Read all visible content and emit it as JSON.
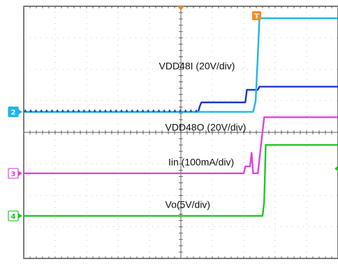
{
  "chart_data": {
    "type": "line",
    "title": "",
    "xlabel": "",
    "ylabel": "",
    "grid": true,
    "grid_divisions": {
      "x": 10,
      "y": 8
    },
    "xlim": [
      0,
      10
    ],
    "ylim": [
      0,
      8
    ],
    "trigger_marker": {
      "label": "T",
      "color": "#ff8a1e",
      "x": 7.4
    },
    "channels": [
      {
        "id": "ch2",
        "marker": "2",
        "marker_style": "filled",
        "color": "#1fb6e6",
        "offset_div": 4.65
      },
      {
        "id": "ch3",
        "marker": "3",
        "marker_style": "outline",
        "color": "#e042e0",
        "offset_div": 2.7
      },
      {
        "id": "ch4",
        "marker": "4",
        "marker_style": "outline",
        "color": "#1ec81e",
        "offset_div": 1.35
      }
    ],
    "series": [
      {
        "name": "VDD48I (20V/div)",
        "channel": "ch2",
        "color": "#1838c8",
        "label_pos_div": [
          4.3,
          6.0
        ],
        "points": [
          [
            0,
            4.65
          ],
          [
            5.55,
            4.65
          ],
          [
            5.6,
            4.82
          ],
          [
            5.65,
            4.95
          ],
          [
            7.05,
            4.95
          ],
          [
            7.1,
            5.35
          ],
          [
            7.45,
            5.35
          ],
          [
            7.5,
            5.45
          ],
          [
            10,
            5.45
          ]
        ]
      },
      {
        "name": "VDD48O (20V/div)",
        "channel": "ch2",
        "color": "#1fb6e6",
        "label_pos_div": [
          4.5,
          4.05
        ],
        "points": [
          [
            0,
            4.65
          ],
          [
            7.3,
            4.65
          ],
          [
            7.38,
            5.0
          ],
          [
            7.45,
            6.5
          ],
          [
            7.5,
            7.62
          ],
          [
            10,
            7.62
          ]
        ]
      },
      {
        "name": "Iin (100mA/div)",
        "channel": "ch3",
        "color": "#e042e0",
        "label_pos_div": [
          4.6,
          2.95
        ],
        "points": [
          [
            0,
            2.7
          ],
          [
            7.0,
            2.7
          ],
          [
            7.05,
            2.92
          ],
          [
            7.2,
            2.92
          ],
          [
            7.25,
            3.35
          ],
          [
            7.3,
            2.7
          ],
          [
            7.45,
            2.7
          ],
          [
            7.55,
            3.6
          ],
          [
            7.65,
            4.48
          ],
          [
            10,
            4.48
          ]
        ]
      },
      {
        "name": "Vo(5V/div)",
        "channel": "ch4",
        "color": "#1ec81e",
        "label_pos_div": [
          4.5,
          1.6
        ],
        "points": [
          [
            0,
            1.35
          ],
          [
            7.6,
            1.35
          ],
          [
            7.65,
            1.8
          ],
          [
            7.7,
            3.6
          ],
          [
            10,
            3.6
          ]
        ]
      }
    ]
  }
}
